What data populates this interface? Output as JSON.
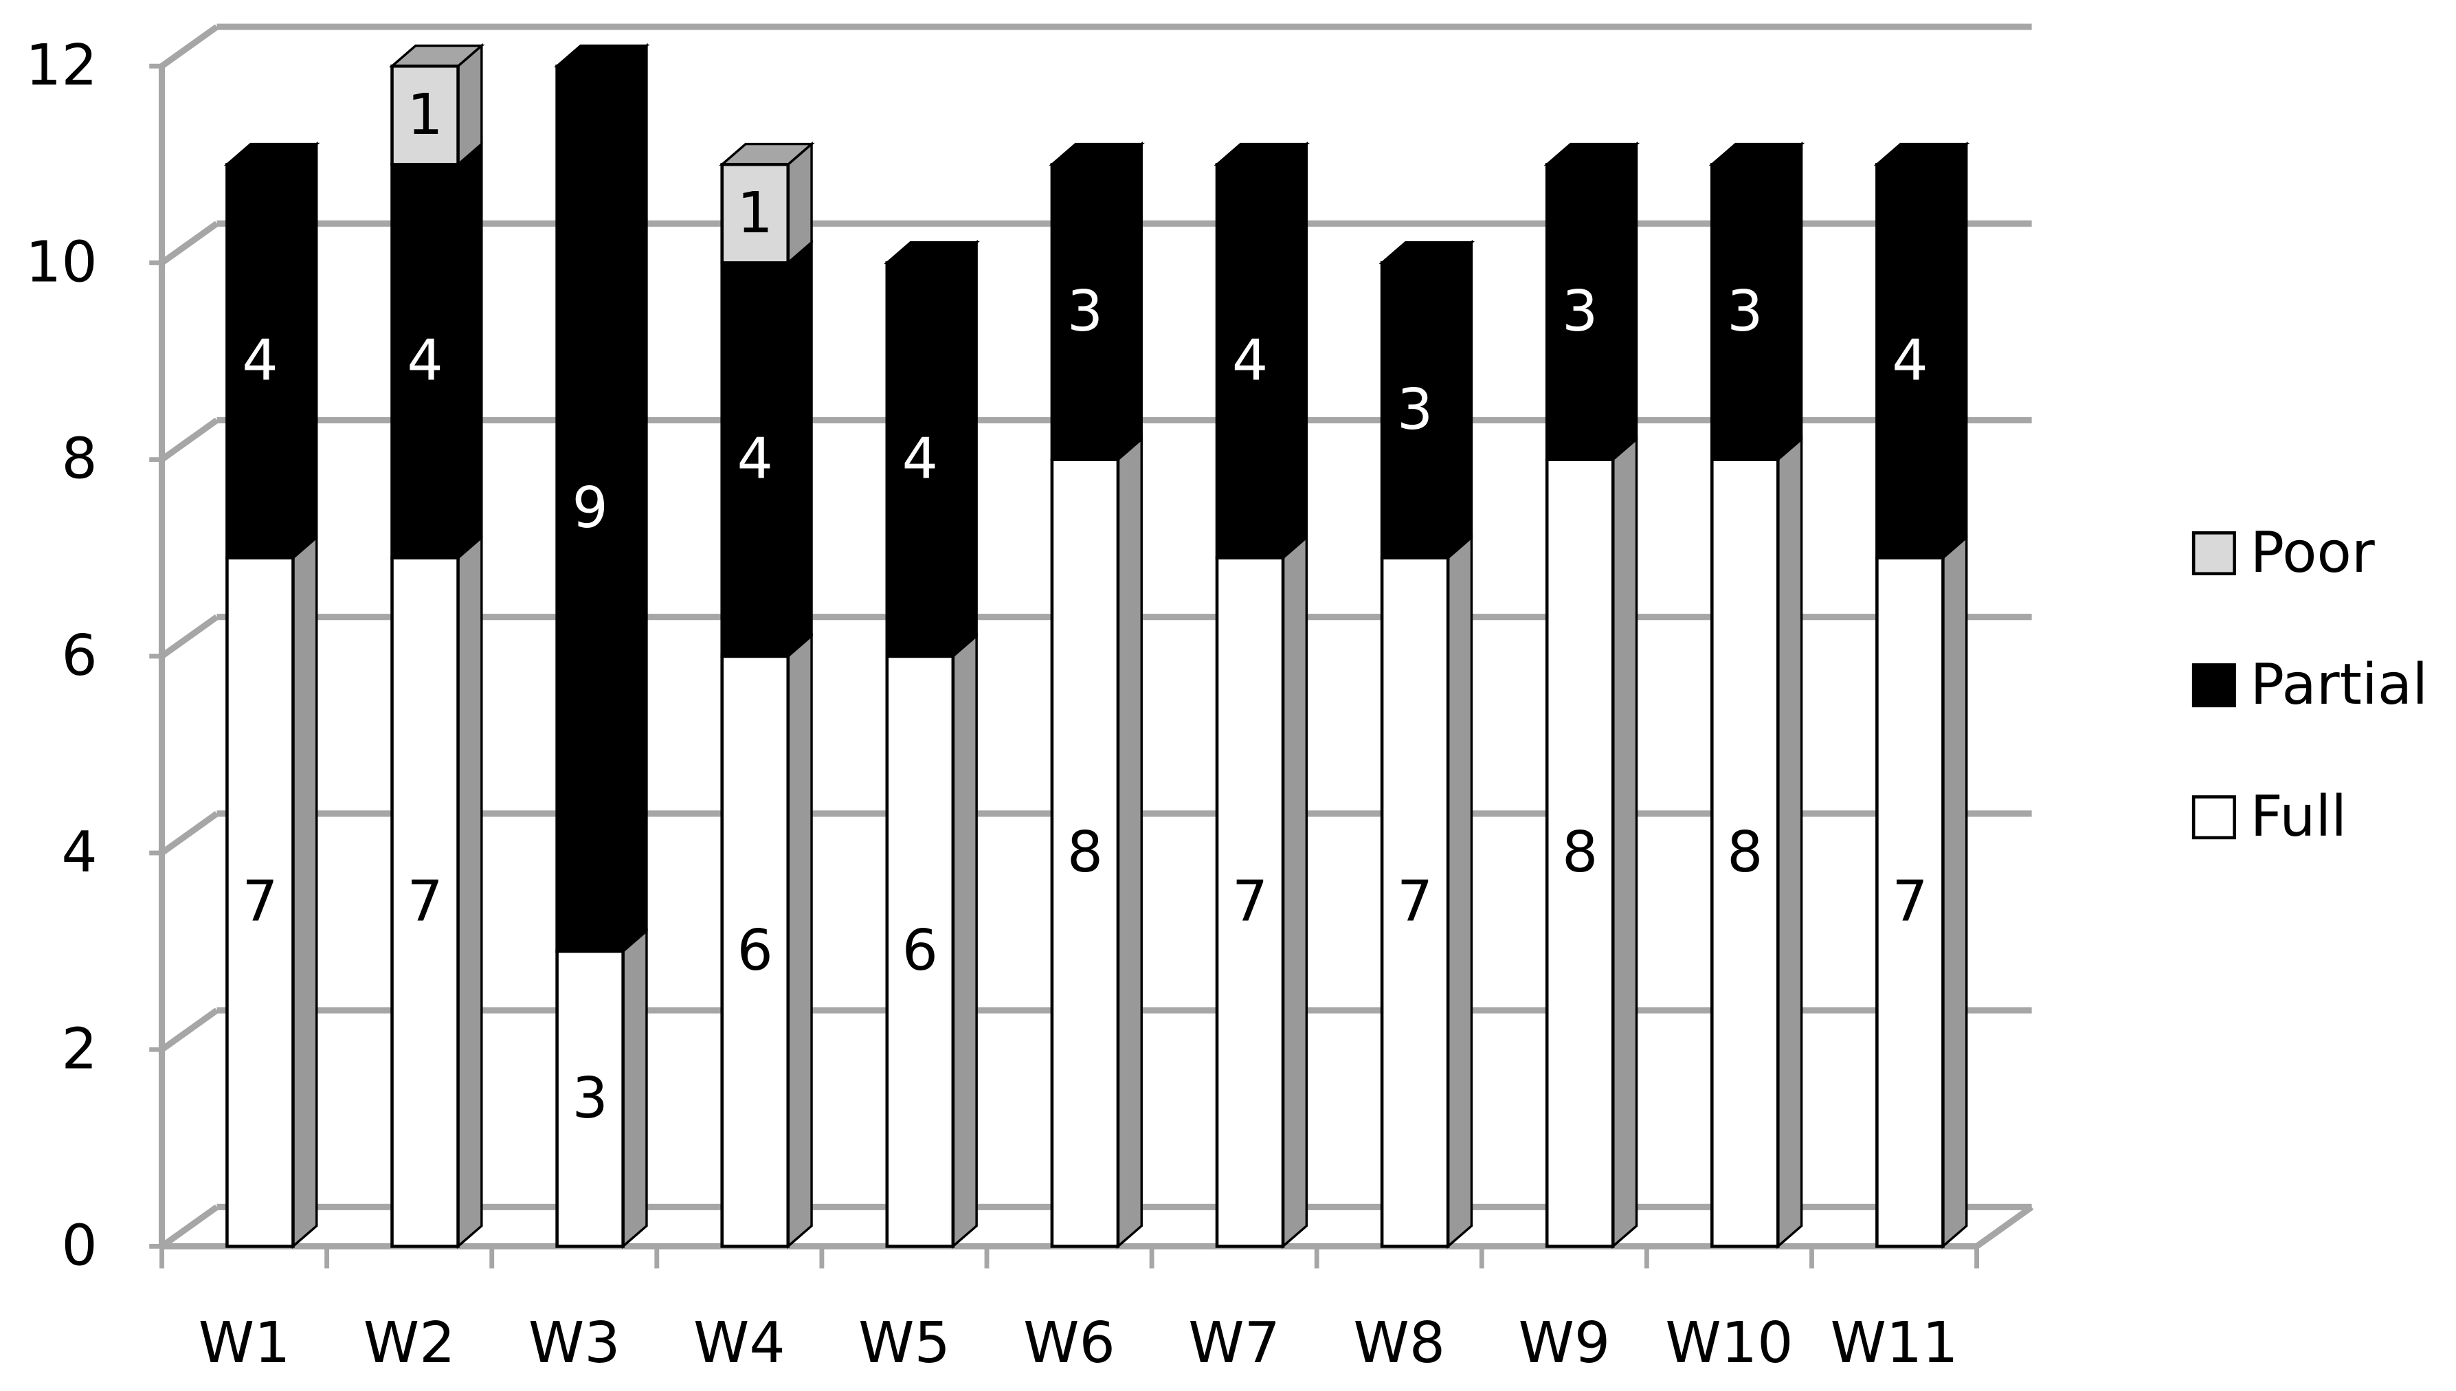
{
  "chart_data": {
    "type": "bar3d",
    "stacked": true,
    "categories": [
      "W1",
      "W2",
      "W3",
      "W4",
      "W5",
      "W6",
      "W7",
      "W8",
      "W9",
      "W10",
      "W11"
    ],
    "series": [
      {
        "name": "Full",
        "color": "#ffffff",
        "values": [
          7,
          7,
          3,
          6,
          6,
          8,
          7,
          7,
          8,
          8,
          7
        ]
      },
      {
        "name": "Partial",
        "color": "#000000",
        "values": [
          4,
          4,
          9,
          4,
          4,
          3,
          4,
          3,
          3,
          3,
          4
        ]
      },
      {
        "name": "Poor",
        "color": "#d9d9d9",
        "values": [
          null,
          1,
          null,
          1,
          null,
          null,
          null,
          null,
          null,
          null,
          null
        ]
      }
    ],
    "ylim": [
      0,
      12
    ],
    "yticks": [
      0,
      2,
      4,
      6,
      8,
      10,
      12
    ],
    "grid": true,
    "legend": "right"
  }
}
